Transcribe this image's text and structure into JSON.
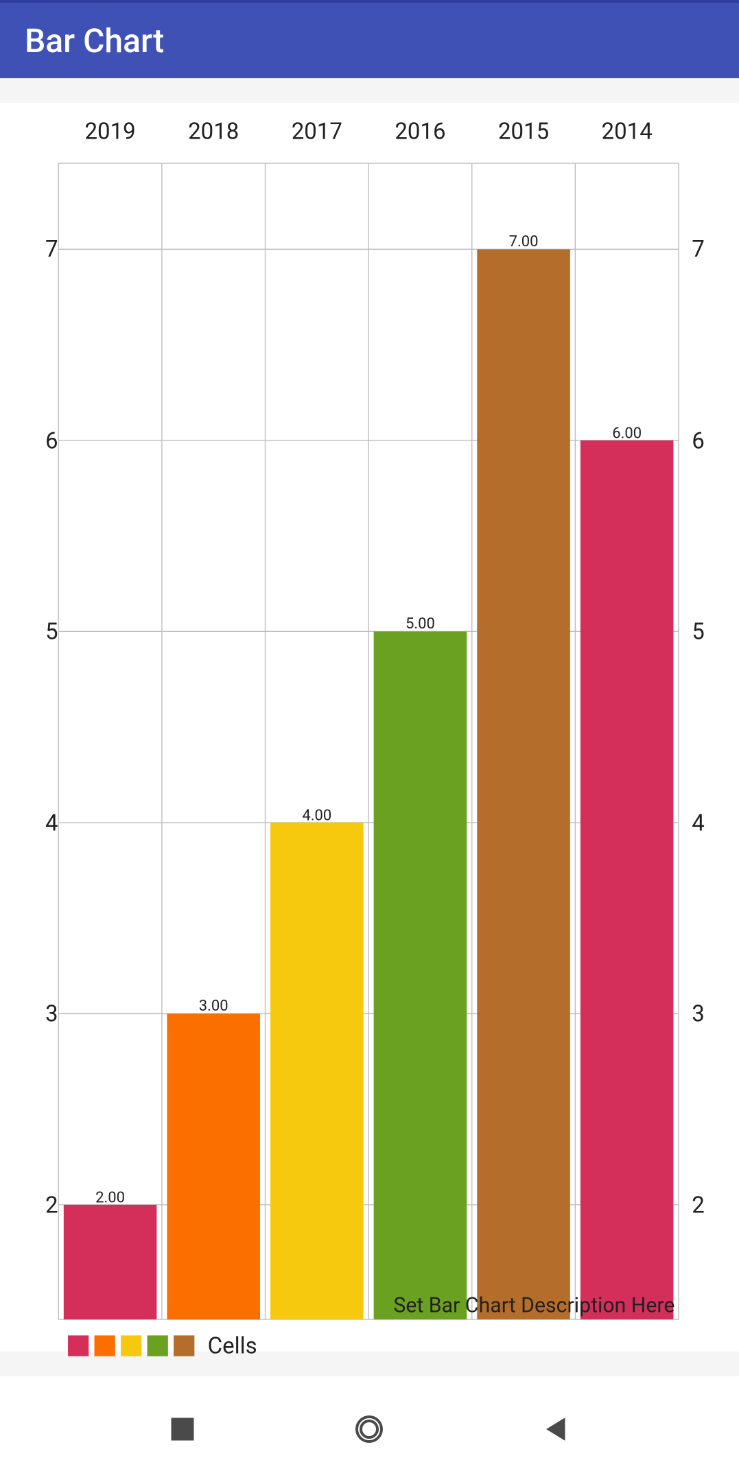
{
  "app": {
    "title": "Bar Chart"
  },
  "chart": {
    "type": "bar",
    "categories": [
      "2019",
      "2018",
      "2017",
      "2016",
      "2015",
      "2014"
    ],
    "values": [
      2,
      3,
      4,
      5,
      7,
      6
    ],
    "value_labels": [
      "2.00",
      "3.00",
      "4.00",
      "5.00",
      "7.00",
      "6.00"
    ],
    "bar_colors": [
      "#d32f5a",
      "#fb6f00",
      "#f6c90e",
      "#6aa121",
      "#b46d2b",
      "#d32f5a"
    ],
    "background_color": "#ffffff",
    "grid_color": "#bdbdbd",
    "y_min_visible": 1.4,
    "y_max_visible": 7.45,
    "y_ticks": [
      2,
      3,
      4,
      5,
      6,
      7
    ],
    "y_tick_labels": [
      "2",
      "3",
      "4",
      "5",
      "6",
      "7"
    ],
    "bar_width_ratio": 0.9,
    "category_fontsize": 24,
    "tick_fontsize": 24,
    "value_label_fontsize": 16,
    "description": "Set Bar Chart Description Here",
    "legend": {
      "label": "Cells",
      "swatches": [
        "#d32f5a",
        "#fb6f00",
        "#f6c90e",
        "#6aa121",
        "#b46d2b"
      ]
    }
  },
  "nav": {
    "recent_icon": "square",
    "home_icon": "circle-outline",
    "back_icon": "triangle-left"
  }
}
